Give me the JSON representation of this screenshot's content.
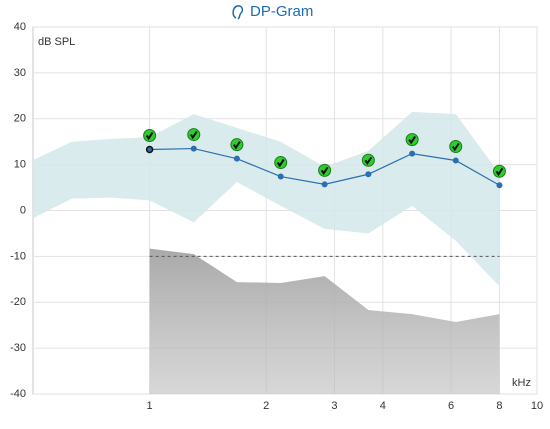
{
  "chart_data": {
    "type": "line",
    "title": "DP-Gram",
    "ylabel": "dB SPL",
    "xlabel": "kHz",
    "x": [
      1,
      1.3,
      1.68,
      2.18,
      2.83,
      3.67,
      4.76,
      6.17,
      8
    ],
    "series": [
      {
        "color": "#2a6fb0",
        "values": [
          13.3,
          13.5,
          11.3,
          7.4,
          5.7,
          7.9,
          12.4,
          10.9,
          5.5
        ]
      }
    ],
    "noise_floor": {
      "color": "#bdbdbd",
      "values": [
        -8.3,
        -9.5,
        -15.6,
        -15.8,
        -14.3,
        -21.7,
        -22.6,
        -24.3,
        -22.6
      ]
    },
    "normal_range": {
      "color": "#d3e8ea",
      "x": [
        0.5,
        0.63,
        0.8,
        1,
        1.3,
        1.68,
        2.18,
        2.83,
        3.67,
        4.76,
        6.17,
        8
      ],
      "upper": [
        11,
        15,
        15.6,
        16,
        21,
        18,
        15,
        9.5,
        13,
        21.5,
        21,
        8
      ],
      "lower": [
        -1.7,
        2.6,
        2.8,
        2.2,
        -2.6,
        6.2,
        1,
        -4,
        -5,
        1,
        -6.6,
        -16.5
      ]
    },
    "reference_line": -10,
    "xlim": [
      0.5,
      10
    ],
    "xticks": [
      1,
      2,
      3,
      4,
      6,
      8,
      10
    ],
    "ylim": [
      -40,
      40
    ],
    "yticks": [
      -40,
      -30,
      -20,
      -10,
      0,
      10,
      20,
      30,
      40
    ],
    "xscale": "log",
    "grid": true
  }
}
